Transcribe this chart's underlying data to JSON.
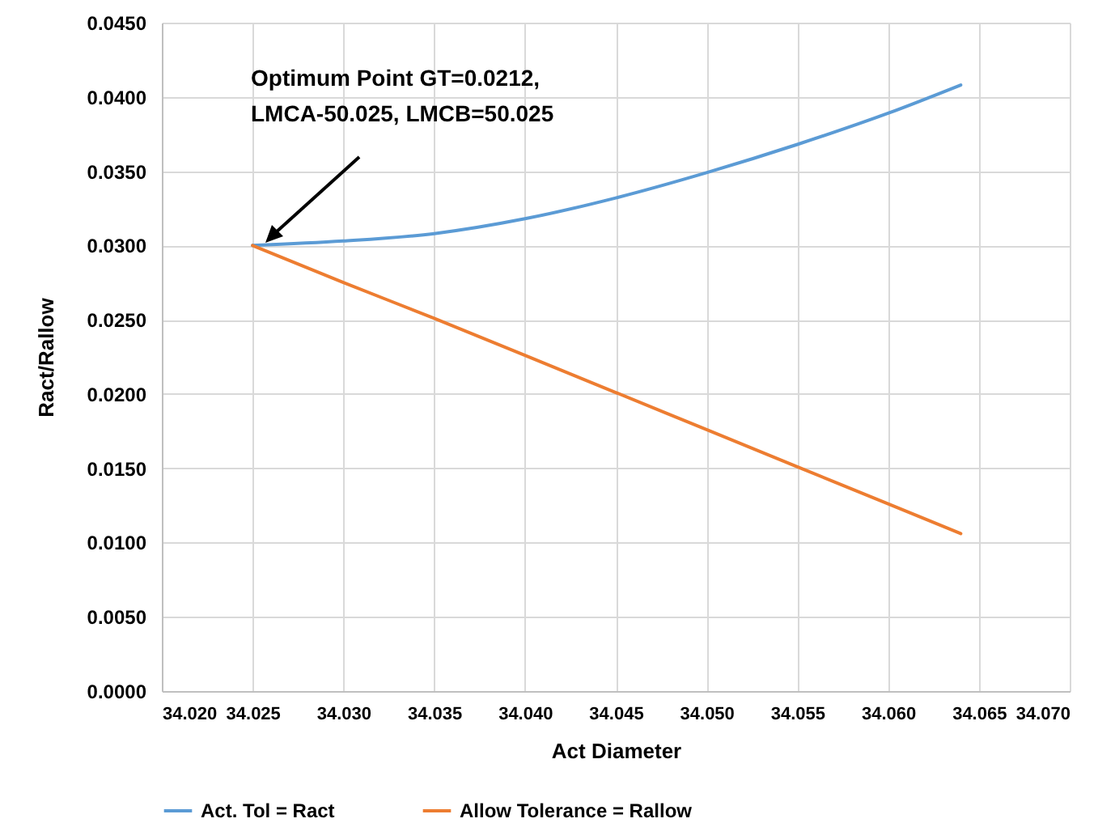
{
  "chart_data": {
    "type": "line",
    "xlabel": "Act Diameter",
    "ylabel": "Ract/Rallow",
    "x": [
      34.025,
      34.03,
      34.035,
      34.04,
      34.045,
      34.05,
      34.055,
      34.06,
      34.064
    ],
    "series": [
      {
        "name": "Act. Tol = Ract",
        "color": "#5b9bd5",
        "values": [
          0.03,
          0.0303,
          0.0308,
          0.0318,
          0.0332,
          0.0349,
          0.0368,
          0.0389,
          0.0408
        ]
      },
      {
        "name": "Allow Tolerance = Rallow",
        "color": "#ed7d31",
        "values": [
          0.03,
          0.0275,
          0.0251,
          0.0226,
          0.0201,
          0.0176,
          0.0151,
          0.0126,
          0.0106
        ]
      }
    ],
    "xlim": [
      34.02,
      34.07
    ],
    "xticks": [
      {
        "value": 34.02,
        "label": "34.020"
      },
      {
        "value": 34.025,
        "label": "34.025"
      },
      {
        "value": 34.03,
        "label": "34.030"
      },
      {
        "value": 34.035,
        "label": "34.035"
      },
      {
        "value": 34.04,
        "label": "34.040"
      },
      {
        "value": 34.045,
        "label": "34.045"
      },
      {
        "value": 34.05,
        "label": "34.050"
      },
      {
        "value": 34.055,
        "label": "34.055"
      },
      {
        "value": 34.06,
        "label": "34.060"
      },
      {
        "value": 34.065,
        "label": "34.065"
      },
      {
        "value": 34.07,
        "label": "34.070"
      }
    ],
    "ylim": [
      0,
      0.045
    ],
    "yticks": [
      {
        "value": 0,
        "label": "0.0000"
      },
      {
        "value": 0.005,
        "label": "0.0050"
      },
      {
        "value": 0.01,
        "label": "0.0100"
      },
      {
        "value": 0.015,
        "label": "0.0150"
      },
      {
        "value": 0.02,
        "label": "0.0200"
      },
      {
        "value": 0.025,
        "label": "0.0250"
      },
      {
        "value": 0.03,
        "label": "0.0300"
      },
      {
        "value": 0.035,
        "label": "0.0350"
      },
      {
        "value": 0.04,
        "label": "0.0400"
      },
      {
        "value": 0.045,
        "label": "0.0450"
      }
    ],
    "annotations": [
      "Optimum Point GT=0.0212,\nLMCA-50.025, LMCB=50.025"
    ],
    "grid": true,
    "legend": "bottom",
    "marker": "none",
    "line_style": "solid"
  }
}
